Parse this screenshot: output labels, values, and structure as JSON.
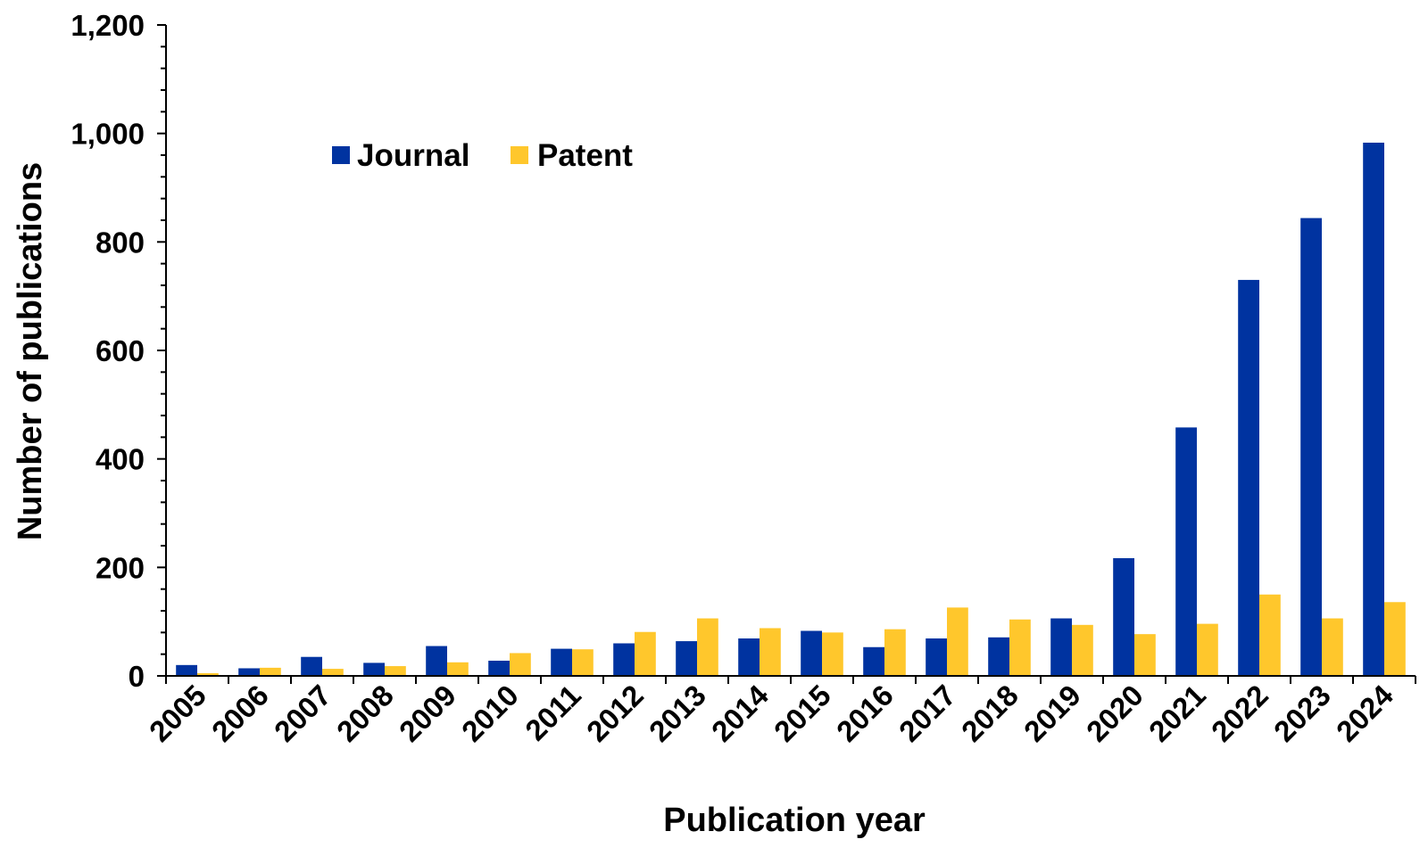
{
  "chart_data": {
    "type": "bar",
    "title": "",
    "xlabel": "Publication year",
    "ylabel": "Number of publications",
    "ylim": [
      0,
      1200
    ],
    "yticks": [
      0,
      200,
      400,
      600,
      800,
      1000,
      1200
    ],
    "ytick_labels": [
      "0",
      "200",
      "400",
      "600",
      "800",
      "1,000",
      "1,200"
    ],
    "grid": false,
    "legend_position": "top-left",
    "categories": [
      "2005",
      "2006",
      "2007",
      "2008",
      "2009",
      "2010",
      "2011",
      "2012",
      "2013",
      "2014",
      "2015",
      "2016",
      "2017",
      "2018",
      "2019",
      "2020",
      "2021",
      "2022",
      "2023",
      "2024"
    ],
    "series": [
      {
        "name": "Journal",
        "color": "#0033A0",
        "values": [
          20,
          14,
          35,
          24,
          55,
          28,
          50,
          60,
          64,
          69,
          83,
          53,
          69,
          71,
          106,
          217,
          458,
          730,
          844,
          983
        ]
      },
      {
        "name": "Patent",
        "color": "#FFC72C",
        "values": [
          5,
          15,
          13,
          18,
          25,
          42,
          49,
          81,
          106,
          88,
          80,
          86,
          126,
          104,
          94,
          77,
          96,
          150,
          106,
          136
        ]
      }
    ]
  }
}
